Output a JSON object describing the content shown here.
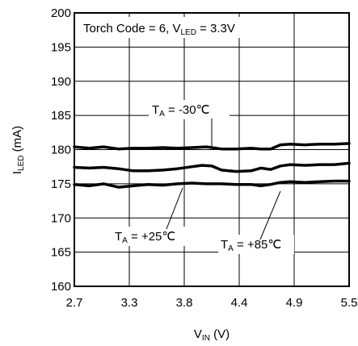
{
  "chart_data": {
    "type": "line",
    "title": "",
    "condition": {
      "prefix": "Torch Code = 6, V",
      "sub": "LED",
      "suffix": " = 3.3V"
    },
    "xlabel": {
      "main": "V",
      "sub": "IN",
      "unit": " (V)"
    },
    "ylabel": {
      "main": "I",
      "sub": "LED",
      "unit": " (mA)"
    },
    "xlim": [
      2.7,
      5.5
    ],
    "ylim": [
      160,
      200
    ],
    "xticks": [
      "2.7",
      "3.3",
      "3.8",
      "4.4",
      "4.9",
      "5.5"
    ],
    "yticks": [
      "160",
      "165",
      "170",
      "175",
      "180",
      "185",
      "190",
      "195",
      "200"
    ],
    "grid": true,
    "series": [
      {
        "main": "T",
        "sub": "A",
        "value": " = -30℃",
        "x": [
          2.7,
          2.85,
          3.0,
          3.15,
          3.3,
          3.45,
          3.6,
          3.75,
          3.9,
          4.05,
          4.2,
          4.35,
          4.5,
          4.6,
          4.7,
          4.8,
          4.9,
          5.05,
          5.2,
          5.35,
          5.5
        ],
        "y": [
          180.4,
          180.2,
          180.4,
          180.1,
          180.2,
          180.2,
          180.3,
          180.2,
          180.3,
          180.4,
          180.1,
          180.1,
          180.2,
          180.1,
          180.1,
          180.7,
          180.8,
          180.7,
          180.8,
          180.8,
          180.9
        ]
      },
      {
        "main": "T",
        "sub": "A",
        "value": " = +25℃",
        "x": [
          2.7,
          2.85,
          3.0,
          3.15,
          3.3,
          3.45,
          3.6,
          3.75,
          3.9,
          4.0,
          4.1,
          4.2,
          4.35,
          4.5,
          4.6,
          4.7,
          4.8,
          4.9,
          5.05,
          5.2,
          5.35,
          5.5
        ],
        "y": [
          177.4,
          177.3,
          177.4,
          177.2,
          176.9,
          176.9,
          177.0,
          177.2,
          177.5,
          177.7,
          177.6,
          177.0,
          176.8,
          176.9,
          177.3,
          177.1,
          177.6,
          177.8,
          177.7,
          177.8,
          177.8,
          178.0
        ]
      },
      {
        "main": "T",
        "sub": "A",
        "value": " = +85℃",
        "x": [
          2.7,
          2.85,
          3.0,
          3.15,
          3.3,
          3.45,
          3.6,
          3.75,
          3.9,
          4.05,
          4.2,
          4.35,
          4.5,
          4.6,
          4.7,
          4.8,
          4.9,
          5.05,
          5.2,
          5.35,
          5.5
        ],
        "y": [
          174.9,
          174.7,
          175.0,
          174.5,
          174.7,
          174.9,
          174.8,
          175.0,
          175.1,
          175.0,
          175.0,
          174.9,
          174.9,
          174.7,
          174.9,
          175.2,
          175.3,
          175.2,
          175.3,
          175.4,
          175.4
        ]
      }
    ]
  }
}
